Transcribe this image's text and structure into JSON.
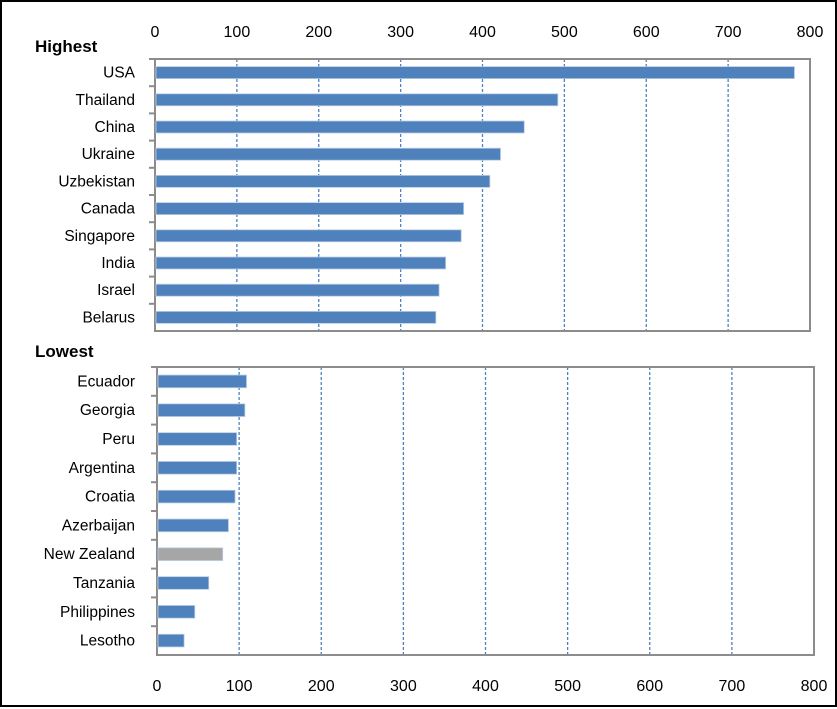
{
  "chart_data": [
    {
      "type": "bar",
      "orientation": "horizontal",
      "title": "Highest",
      "categories": [
        "USA",
        "Thailand",
        "China",
        "Ukraine",
        "Uzbekistan",
        "Canada",
        "Singapore",
        "India",
        "Israel",
        "Belarus"
      ],
      "values": [
        781,
        492,
        451,
        422,
        409,
        377,
        374,
        355,
        347,
        343
      ],
      "colors": [
        "#4f81bd",
        "#4f81bd",
        "#4f81bd",
        "#4f81bd",
        "#4f81bd",
        "#4f81bd",
        "#4f81bd",
        "#4f81bd",
        "#4f81bd",
        "#4f81bd"
      ],
      "xlim": [
        0,
        800
      ],
      "xticks": [
        "0",
        "100",
        "200",
        "300",
        "400",
        "500",
        "600",
        "700",
        "800"
      ],
      "axis_position": "top",
      "grid": "vertical dashed"
    },
    {
      "type": "bar",
      "orientation": "horizontal",
      "title": "Lowest",
      "categories": [
        "Ecuador",
        "Georgia",
        "Peru",
        "Argentina",
        "Croatia",
        "Azerbaijan",
        "New Zealand",
        "Tanzania",
        "Philippines",
        "Lesotho"
      ],
      "values": [
        109,
        107,
        97,
        97,
        95,
        87,
        80,
        63,
        46,
        33
      ],
      "colors": [
        "#4f81bd",
        "#4f81bd",
        "#4f81bd",
        "#4f81bd",
        "#4f81bd",
        "#4f81bd",
        "#a6a6a6",
        "#4f81bd",
        "#4f81bd",
        "#4f81bd"
      ],
      "xlim": [
        0,
        800
      ],
      "xticks": [
        "0",
        "100",
        "200",
        "300",
        "400",
        "500",
        "600",
        "700",
        "800"
      ],
      "axis_position": "bottom",
      "grid": "vertical dashed"
    }
  ]
}
